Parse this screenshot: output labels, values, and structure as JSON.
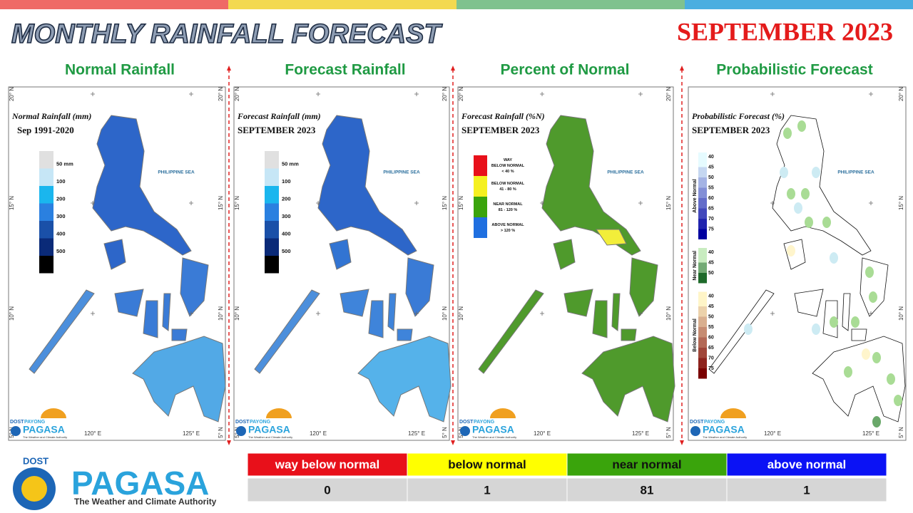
{
  "header": {
    "title": "MONTHLY RAINFALL FORECAST",
    "period": "SEPTEMBER 2023"
  },
  "map_labels": {
    "lat": [
      "20° N",
      "15° N",
      "10° N",
      "5° N"
    ],
    "lon": [
      "120° E",
      "125° E"
    ],
    "sea": "PHILIPPINE SEA",
    "logo": {
      "agency": "DOST",
      "brand": "PAYONG",
      "name": "PAGASA",
      "tagline": "The Weather and Climate Authority"
    }
  },
  "panels": [
    {
      "heading": "Normal Rainfall",
      "map_title": "Normal Rainfall (mm)",
      "map_subtitle": "Sep 1991-2020",
      "legend": [
        "50 mm",
        "100",
        "200",
        "300",
        "400",
        "500"
      ]
    },
    {
      "heading": "Forecast Rainfall",
      "map_title": "Forecast Rainfall (mm)",
      "map_subtitle": "SEPTEMBER 2023",
      "legend": [
        "50 mm",
        "100",
        "200",
        "300",
        "400",
        "500"
      ]
    },
    {
      "heading": "Percent of Normal",
      "map_title": "Forecast Rainfall (%N)",
      "map_subtitle": "SEPTEMBER 2023",
      "legend": [
        [
          "WAY",
          "BELOW NORMAL",
          "< 40 %"
        ],
        [
          "BELOW NORMAL",
          "41 - 80 %"
        ],
        [
          "NEAR NORMAL",
          "81 - 120 %"
        ],
        [
          "ABOVE NORMAL",
          "> 120 %"
        ]
      ]
    },
    {
      "heading": "Probabilistic Forecast",
      "map_title": "Probabilistic Forecast (%)",
      "map_subtitle": "SEPTEMBER 2023",
      "legend": [
        {
          "name": "Above Normal",
          "labels": [
            "40",
            "45",
            "50",
            "55",
            "60",
            "65",
            "70",
            "75"
          ]
        },
        {
          "name": "Near Normal",
          "labels": [
            "40",
            "45",
            "50"
          ]
        },
        {
          "name": "Below Normal",
          "labels": [
            "40",
            "45",
            "50",
            "55",
            "60",
            "65",
            "70",
            "75"
          ]
        }
      ]
    }
  ],
  "summary": {
    "headers": [
      "way below normal",
      "below normal",
      "near normal",
      "above normal"
    ],
    "counts": [
      "0",
      "1",
      "81",
      "1"
    ]
  },
  "footer": {
    "agency": "DOST",
    "name": "PAGASA",
    "tagline": "The Weather and Climate Authority"
  }
}
